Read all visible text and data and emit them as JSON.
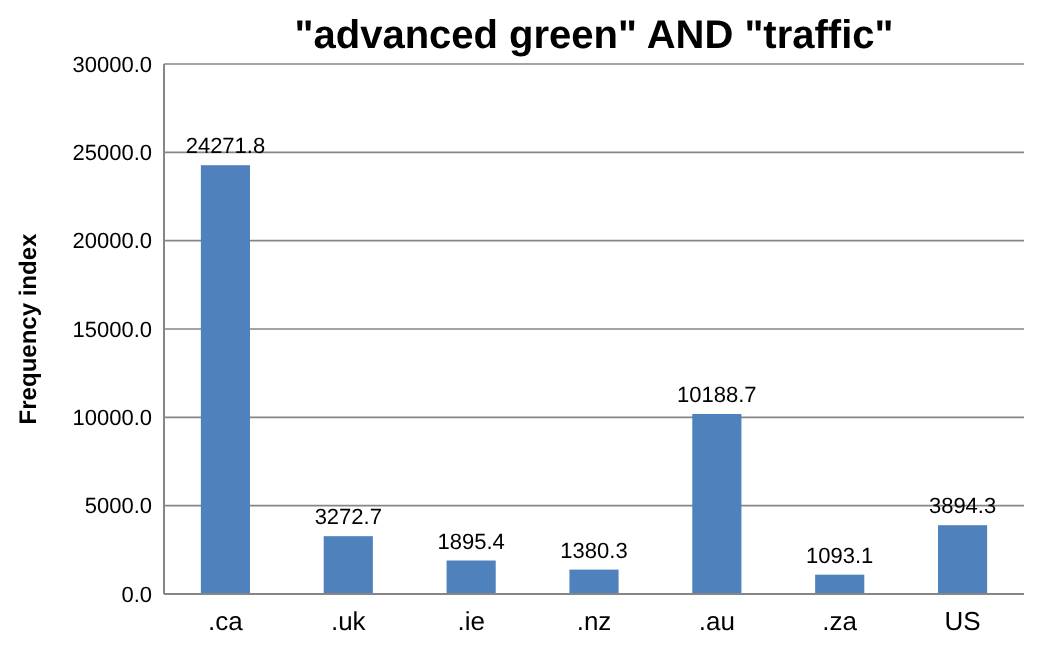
{
  "chart_data": {
    "type": "bar",
    "title": "\"advanced green\" AND \"traffic\"",
    "ylabel": "Frequency index",
    "categories": [
      ".ca",
      ".uk",
      ".ie",
      ".nz",
      ".au",
      ".za",
      "US"
    ],
    "values": [
      24271.8,
      3272.7,
      1895.4,
      1380.3,
      10188.7,
      1093.1,
      3894.3
    ],
    "color": "#4f81bd",
    "ylim": [
      0,
      30000
    ],
    "yticks": [
      {
        "value": 0,
        "label": "0.0"
      },
      {
        "value": 5000,
        "label": "5000.0"
      },
      {
        "value": 10000,
        "label": "10000.0"
      },
      {
        "value": 15000,
        "label": "15000.0"
      },
      {
        "value": 20000,
        "label": "20000.0"
      },
      {
        "value": 25000,
        "label": "25000.0"
      },
      {
        "value": 30000,
        "label": "30000.0"
      }
    ],
    "grid": true,
    "data_labels": true
  }
}
